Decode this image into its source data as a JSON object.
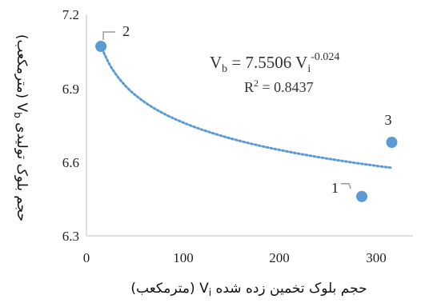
{
  "chart_data": {
    "type": "scatter",
    "xlim": [
      0,
      350
    ],
    "ylim": [
      6.3,
      7.2
    ],
    "x_ticks": [
      "0",
      "100",
      "200",
      "300"
    ],
    "y_ticks": [
      "6.3",
      "6.6",
      "6.9",
      "7.2"
    ],
    "xlabel": {
      "prefix": "حجم بلوک تخمین زده شده",
      "var": "V",
      "sub": "i",
      "unit": "(مترمکعب)"
    },
    "ylabel": {
      "prefix": "حجم بلوک تولیدی",
      "var": "V",
      "sub": "b",
      "unit": "(مترمکعب)"
    },
    "points": [
      {
        "label": "1",
        "x": 285,
        "y": 6.46
      },
      {
        "label": "2",
        "x": 15,
        "y": 7.07
      },
      {
        "label": "3",
        "x": 316,
        "y": 6.68
      }
    ],
    "trendline": {
      "type": "power",
      "a": 7.5506,
      "b": -0.024,
      "x_start": 15,
      "x_end": 316,
      "equation": {
        "lhs": "V",
        "lhs_sub": "b",
        "eq": " = 7.5506 V",
        "rhs_sub": "i",
        "exp": "-0.024"
      },
      "r2": {
        "base": "R",
        "exp": "2",
        "rest": " = 0.8437"
      }
    },
    "grid": false,
    "legend": "none",
    "colors": {
      "marker": "#5B9BD5",
      "trend": "#5B9BD5",
      "axis": "#bfbfbf"
    }
  }
}
